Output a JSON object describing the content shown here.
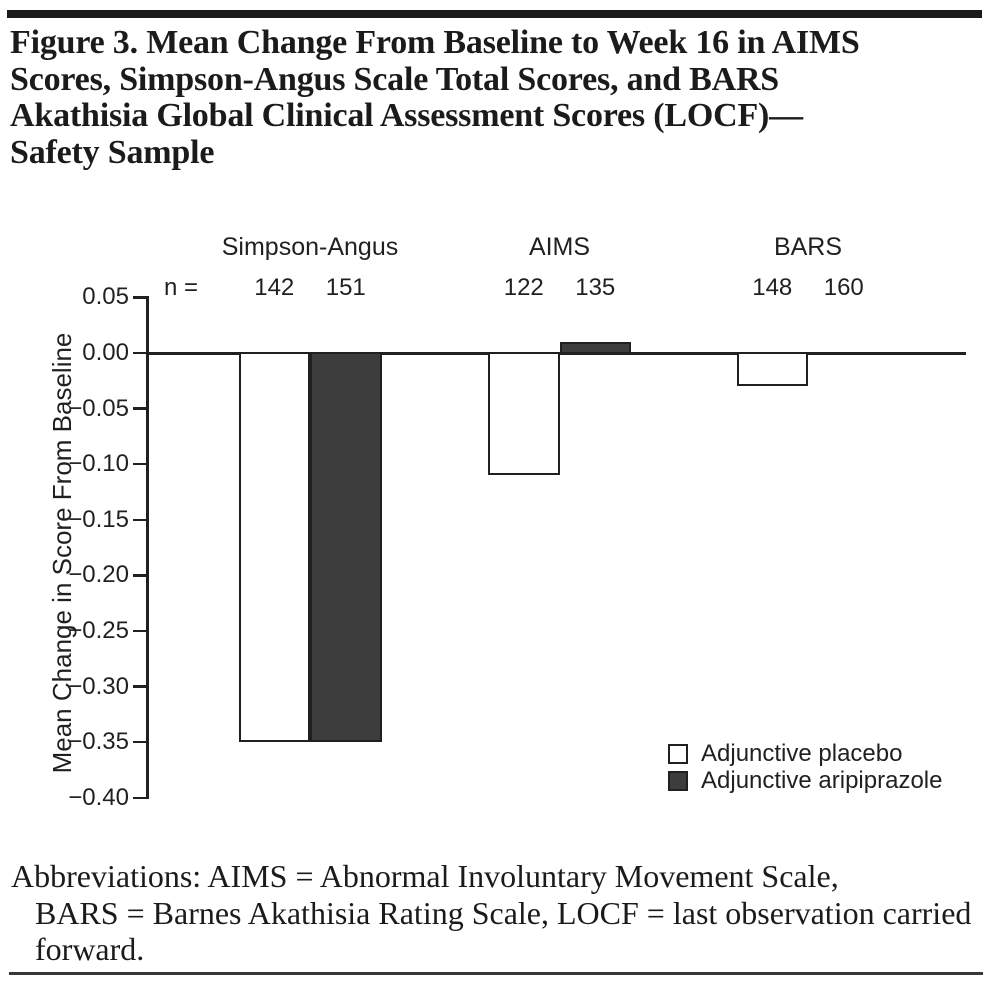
{
  "figure": {
    "title_lines": [
      "Figure 3. Mean Change From Baseline to Week 16 in AIMS",
      "Scores, Simpson-Angus Scale Total Scores, and BARS",
      "Akathisia Global Clinical Assessment Scores (LOCF)—",
      "Safety Sample"
    ],
    "footnote_lines": [
      "Abbreviations: AIMS = Abnormal Involuntary Movement Scale,",
      "BARS = Barnes Akathisia Rating Scale, LOCF = last observation carried",
      "forward."
    ]
  },
  "chart_data": {
    "type": "bar",
    "title": "",
    "xlabel": "",
    "ylabel": "Mean Change in Score From Baseline",
    "ylim": [
      -0.4,
      0.05
    ],
    "ytick_values": [
      0.05,
      0.0,
      -0.05,
      -0.1,
      -0.15,
      -0.2,
      -0.25,
      -0.3,
      -0.35,
      -0.4
    ],
    "ytick_labels": [
      "0.05",
      "0.00",
      "−0.05",
      "−0.10",
      "−0.15",
      "−0.20",
      "−0.25",
      "−0.30",
      "−0.35",
      "−0.40"
    ],
    "grid": false,
    "legend_position": "inside-bottom-right",
    "n_prefix": "n =",
    "categories": [
      "Simpson-Angus",
      "AIMS",
      "BARS"
    ],
    "series": [
      {
        "name": "Adjunctive placebo",
        "color": "#ffffff"
      },
      {
        "name": "Adjunctive aripiprazole",
        "color": "#3d3d3d"
      }
    ],
    "values": [
      [
        -0.35,
        -0.35
      ],
      [
        -0.11,
        0.01
      ],
      [
        -0.03,
        0.0
      ]
    ],
    "n_values": [
      [
        142,
        151
      ],
      [
        122,
        135
      ],
      [
        148,
        160
      ]
    ],
    "axis_color": "#231f20"
  }
}
